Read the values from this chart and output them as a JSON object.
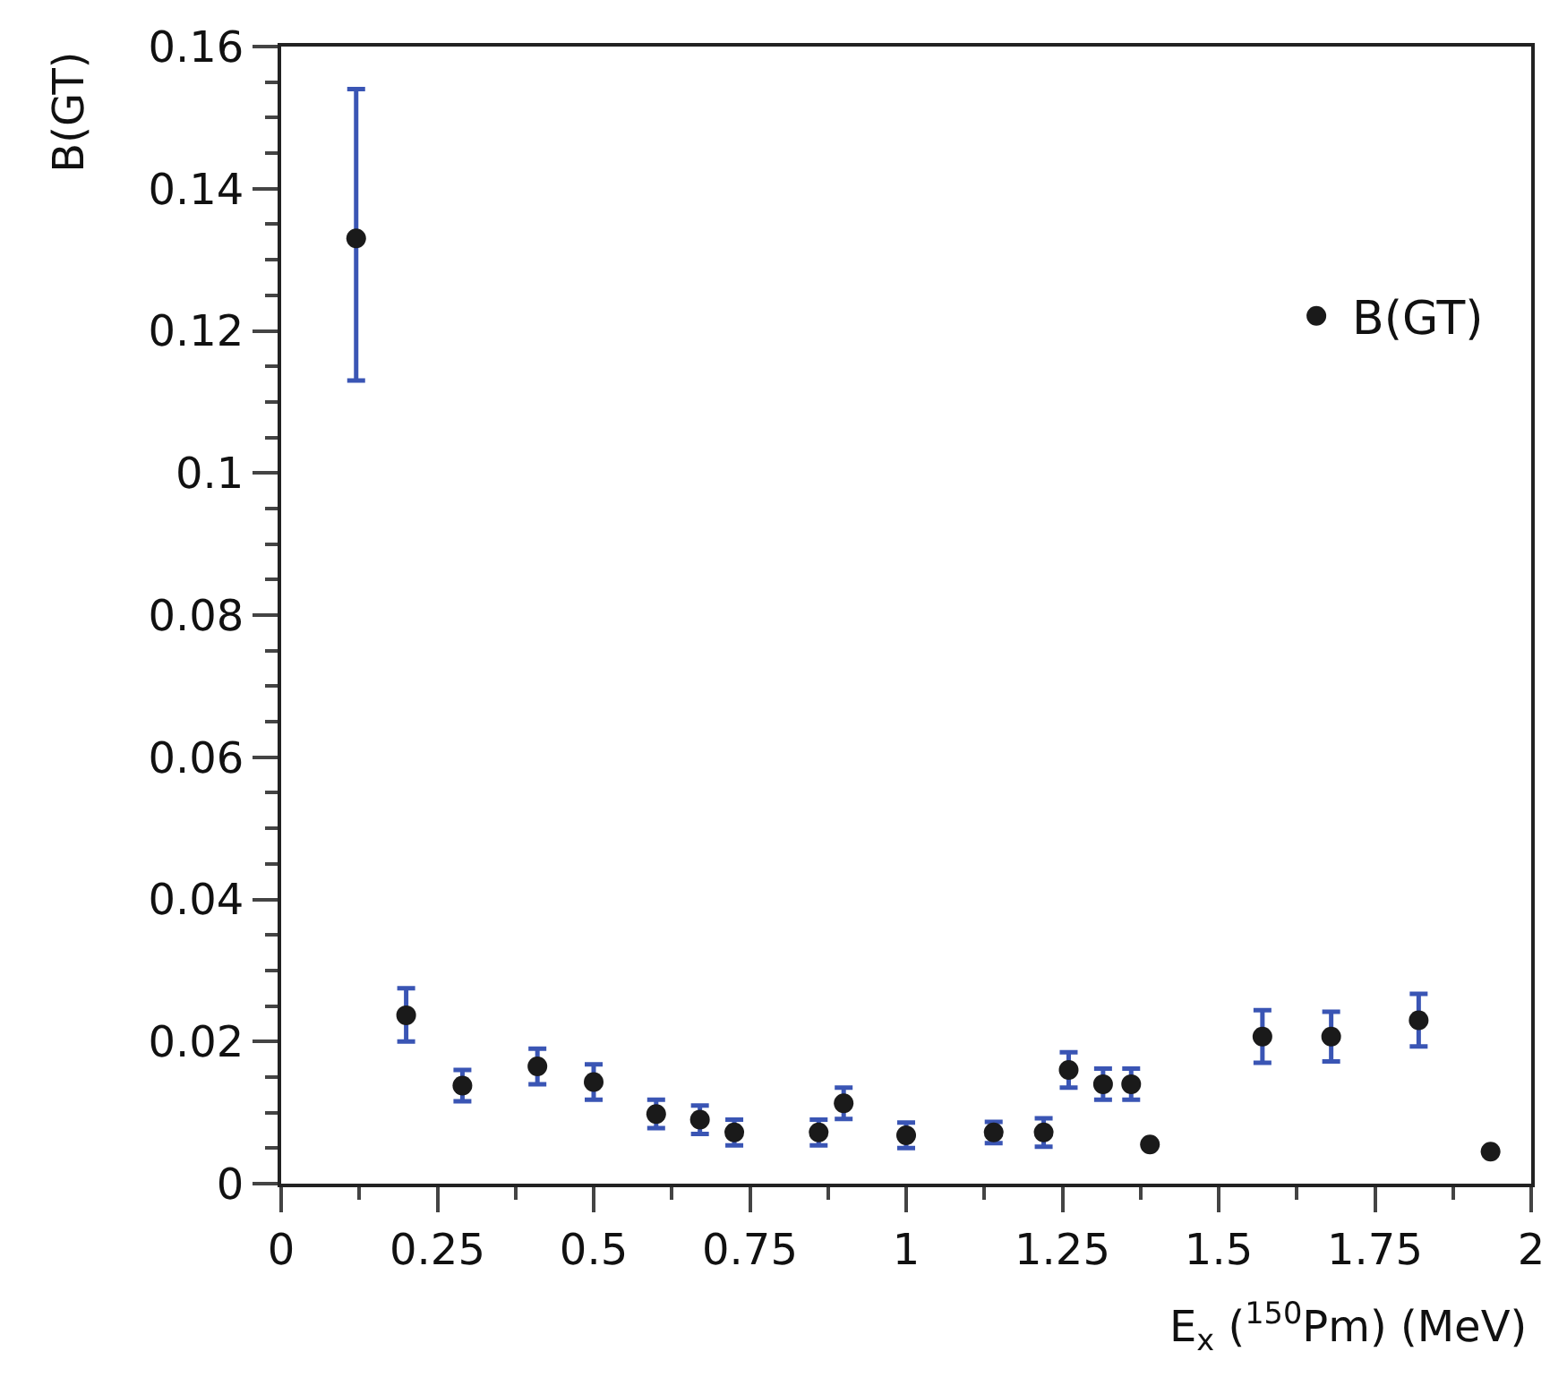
{
  "chart_data": {
    "type": "scatter",
    "xlabel": "E$_{x}$ ($^{150}$Pm) (MeV)",
    "ylabel": "B(GT)",
    "xlim": [
      0,
      2
    ],
    "ylim": [
      0,
      0.16
    ],
    "xticks": [
      0,
      0.25,
      0.5,
      0.75,
      1,
      1.25,
      1.5,
      1.75,
      2,
      {
        "value": 0.125,
        "label": null
      },
      {
        "value": 0.375,
        "label": null
      },
      {
        "value": 0.625,
        "label": null
      },
      {
        "value": 0.875,
        "label": null
      },
      {
        "value": 1.125,
        "label": null
      },
      {
        "value": 1.375,
        "label": null
      },
      {
        "value": 1.625,
        "label": null
      },
      {
        "value": 1.875,
        "label": null
      }
    ],
    "yticks": [
      0,
      0.02,
      0.04,
      0.06,
      0.08,
      0.1,
      0.12,
      0.14,
      0.16,
      {
        "value": 0.005,
        "label": null
      },
      {
        "value": 0.01,
        "label": null
      },
      {
        "value": 0.015,
        "label": null
      },
      {
        "value": 0.025,
        "label": null
      },
      {
        "value": 0.03,
        "label": null
      },
      {
        "value": 0.035,
        "label": null
      },
      {
        "value": 0.045,
        "label": null
      },
      {
        "value": 0.05,
        "label": null
      },
      {
        "value": 0.055,
        "label": null
      },
      {
        "value": 0.065,
        "label": null
      },
      {
        "value": 0.07,
        "label": null
      },
      {
        "value": 0.075,
        "label": null
      },
      {
        "value": 0.085,
        "label": null
      },
      {
        "value": 0.09,
        "label": null
      },
      {
        "value": 0.095,
        "label": null
      },
      {
        "value": 0.105,
        "label": null
      },
      {
        "value": 0.11,
        "label": null
      },
      {
        "value": 0.115,
        "label": null
      },
      {
        "value": 0.125,
        "label": null
      },
      {
        "value": 0.13,
        "label": null
      },
      {
        "value": 0.135,
        "label": null
      },
      {
        "value": 0.145,
        "label": null
      },
      {
        "value": 0.15,
        "label": null
      },
      {
        "value": 0.155,
        "label": null
      }
    ],
    "marker": "circle",
    "legend": "top right",
    "x": [
      0.12,
      0.2,
      0.29,
      0.41,
      0.5,
      0.6,
      0.67,
      0.725,
      0.86,
      0.9,
      1.0,
      1.14,
      1.22,
      1.26,
      1.315,
      1.36,
      1.39,
      1.57,
      1.68,
      1.82,
      1.935
    ],
    "series": [
      {
        "name": "B(GT)",
        "color": "#1a1a1a",
        "values": [
          0.133,
          0.0237,
          0.0138,
          0.0165,
          0.0143,
          0.0098,
          0.009,
          0.0072,
          0.0072,
          0.0113,
          0.0068,
          0.0072,
          0.0072,
          0.016,
          0.014,
          0.014,
          0.0055,
          0.0207,
          0.0207,
          0.023,
          0.0045
        ],
        "errors": [
          [
            0.113,
            0.154
          ],
          [
            0.02,
            0.0275
          ],
          0.0022,
          0.0025,
          0.0025,
          0.002,
          0.002,
          0.0018,
          0.0018,
          0.0022,
          0.0018,
          0.0015,
          0.002,
          0.0025,
          0.0022,
          0.0022,
          null,
          0.0037,
          0.0035,
          0.0037,
          null
        ]
      }
    ]
  }
}
